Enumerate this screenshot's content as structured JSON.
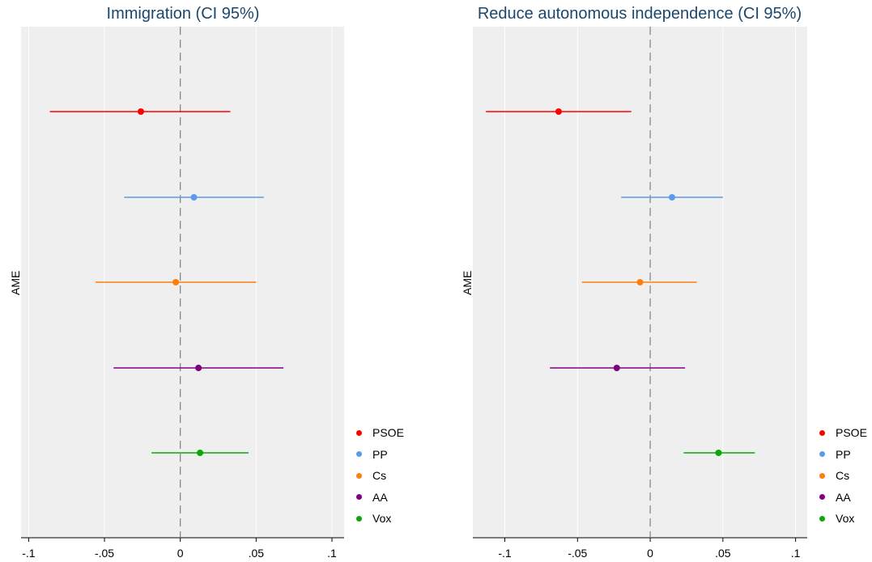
{
  "chart_data": [
    {
      "type": "scatter",
      "title": "Immigration (CI 95%)",
      "ylabel": "AME",
      "xlim": [
        -0.105,
        0.108
      ],
      "xticks": [
        {
          "value": -0.1,
          "label": "-.1"
        },
        {
          "value": -0.05,
          "label": "-.05"
        },
        {
          "value": 0,
          "label": "0"
        },
        {
          "value": 0.05,
          "label": ".05"
        },
        {
          "value": 0.1,
          "label": ".1"
        }
      ],
      "reference_line": 0,
      "series": [
        {
          "name": "PSOE",
          "color": "#ff0000",
          "estimate": -0.026,
          "ci": [
            -0.086,
            0.033
          ]
        },
        {
          "name": "PP",
          "color": "#5b9bea",
          "estimate": 0.009,
          "ci": [
            -0.037,
            0.055
          ]
        },
        {
          "name": "Cs",
          "color": "#ff7f0e",
          "estimate": -0.003,
          "ci": [
            -0.056,
            0.05
          ]
        },
        {
          "name": "AA",
          "color": "#800080",
          "estimate": 0.012,
          "ci": [
            -0.044,
            0.068
          ]
        },
        {
          "name": "Vox",
          "color": "#0aa80a",
          "estimate": 0.013,
          "ci": [
            -0.019,
            0.045
          ]
        }
      ]
    },
    {
      "type": "scatter",
      "title": "Reduce autonomous independence (CI 95%)",
      "ylabel": "AME",
      "xlim": [
        -0.122,
        0.108
      ],
      "xticks": [
        {
          "value": -0.1,
          "label": "-.1"
        },
        {
          "value": -0.05,
          "label": "-.05"
        },
        {
          "value": 0,
          "label": "0"
        },
        {
          "value": 0.05,
          "label": ".05"
        },
        {
          "value": 0.1,
          "label": ".1"
        }
      ],
      "reference_line": 0,
      "series": [
        {
          "name": "PSOE",
          "color": "#ff0000",
          "estimate": -0.063,
          "ci": [
            -0.113,
            -0.013
          ]
        },
        {
          "name": "PP",
          "color": "#5b9bea",
          "estimate": 0.015,
          "ci": [
            -0.02,
            0.05
          ]
        },
        {
          "name": "Cs",
          "color": "#ff7f0e",
          "estimate": -0.007,
          "ci": [
            -0.047,
            0.032
          ]
        },
        {
          "name": "AA",
          "color": "#800080",
          "estimate": -0.023,
          "ci": [
            -0.069,
            0.024
          ]
        },
        {
          "name": "Vox",
          "color": "#0aa80a",
          "estimate": 0.047,
          "ci": [
            0.023,
            0.072
          ]
        }
      ]
    }
  ],
  "legend": [
    {
      "label": "PSOE",
      "color": "#ff0000"
    },
    {
      "label": "PP",
      "color": "#5b9bea"
    },
    {
      "label": "Cs",
      "color": "#ff7f0e"
    },
    {
      "label": "AA",
      "color": "#800080"
    },
    {
      "label": "Vox",
      "color": "#0aa80a"
    }
  ]
}
